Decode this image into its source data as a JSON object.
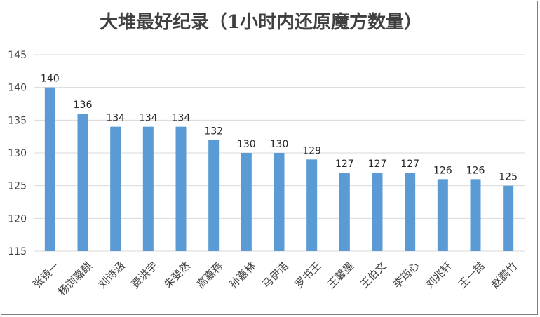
{
  "chart_data": {
    "type": "bar",
    "title": "大堆最好纪录（1小时内还原魔方数量）",
    "categories": [
      "张镜一",
      "杨浏嘉麒",
      "刘诗涵",
      "费洪宇",
      "朱斐然",
      "高嘉蒋",
      "孙嘉林",
      "马伊诺",
      "罗书玉",
      "王馨墨",
      "王伯文",
      "李筠心",
      "刘兆轩",
      "王一喆",
      "赵鹏竹"
    ],
    "values": [
      140,
      136,
      134,
      134,
      134,
      132,
      130,
      130,
      129,
      127,
      127,
      127,
      126,
      126,
      125
    ],
    "ylim": [
      115,
      145
    ],
    "yticks": [
      115,
      120,
      125,
      130,
      135,
      140,
      145
    ],
    "grid": true,
    "bar_color": "#5b9bd5",
    "data_labels": true
  }
}
